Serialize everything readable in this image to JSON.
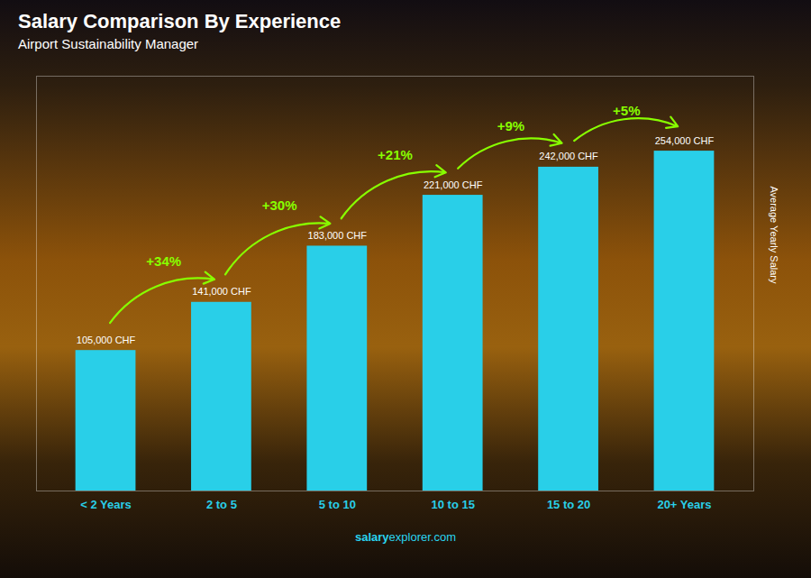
{
  "chart_data": {
    "type": "bar",
    "title": "Salary Comparison By Experience",
    "subtitle": "Airport Sustainability Manager",
    "ylabel": "Average Yearly Salary",
    "categories": [
      "< 2 Years",
      "2 to 5",
      "5 to 10",
      "10 to 15",
      "15 to 20",
      "20+ Years"
    ],
    "values": [
      105000,
      141000,
      183000,
      221000,
      242000,
      254000
    ],
    "value_labels": [
      "105,000 CHF",
      "141,000 CHF",
      "183,000 CHF",
      "221,000 CHF",
      "242,000 CHF",
      "254,000 CHF"
    ],
    "data_labels": true,
    "annotations": [
      "+34%",
      "+30%",
      "+21%",
      "+9%",
      "+5%"
    ],
    "footer": [
      "salary",
      "explorer.com"
    ],
    "color": "#29cfe8",
    "ylim": [
      0,
      310000
    ],
    "yticks": [],
    "tick_labels": "x",
    "grid": false
  }
}
